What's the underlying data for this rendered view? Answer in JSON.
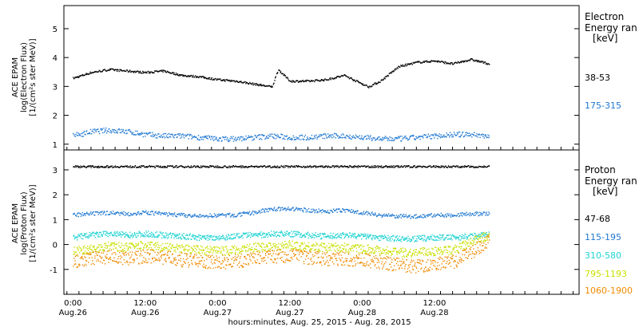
{
  "chart_data": [
    {
      "type": "scatter",
      "panel": "electron",
      "ylabel": [
        "ACE EPAM",
        "log(Electron Flux)",
        "[1/(cm²s ster MeV)]"
      ],
      "ylim": [
        0.8,
        5.8
      ],
      "yticks": [
        "1",
        "2",
        "3",
        "4",
        "5"
      ],
      "side_title": [
        "Electron",
        "Energy ran",
        "[keV]"
      ],
      "series": [
        {
          "name": "38-53",
          "color": "#000000",
          "x": [
            0,
            3,
            6,
            9,
            12,
            15,
            18,
            21,
            24,
            27,
            30,
            33,
            34,
            36,
            39,
            42,
            45,
            47,
            48,
            49,
            50,
            51,
            54,
            57,
            60,
            63,
            66,
            69
          ],
          "y": [
            3.3,
            3.5,
            3.6,
            3.55,
            3.5,
            3.55,
            3.4,
            3.35,
            3.25,
            3.2,
            3.1,
            3.0,
            3.6,
            3.2,
            3.2,
            3.25,
            3.4,
            3.2,
            3.1,
            3.0,
            3.1,
            3.2,
            3.7,
            3.85,
            3.9,
            3.8,
            3.95,
            3.8
          ]
        },
        {
          "name": "175-315",
          "color": "#1f78d1",
          "x": [
            0,
            3,
            6,
            9,
            12,
            15,
            18,
            21,
            24,
            27,
            30,
            33,
            36,
            39,
            42,
            45,
            48,
            51,
            54,
            57,
            60,
            63,
            66,
            69
          ],
          "y": [
            1.3,
            1.45,
            1.5,
            1.45,
            1.35,
            1.3,
            1.3,
            1.25,
            1.2,
            1.2,
            1.25,
            1.3,
            1.25,
            1.25,
            1.3,
            1.3,
            1.25,
            1.2,
            1.2,
            1.25,
            1.3,
            1.35,
            1.35,
            1.3
          ]
        }
      ]
    },
    {
      "type": "scatter",
      "panel": "proton",
      "ylabel": [
        "ACE EPAM",
        "log(Proton Flux)",
        "[1/(cm²s ster MeV)]"
      ],
      "ylim": [
        -2.0,
        3.8
      ],
      "yticks": [
        "-1",
        "0",
        "1",
        "2",
        "3"
      ],
      "side_title": [
        "Proton",
        "Energy ran",
        "[keV]"
      ],
      "series": [
        {
          "name": "47-68",
          "color": "#000000",
          "x": [
            0,
            6,
            12,
            18,
            24,
            30,
            36,
            42,
            48,
            54,
            60,
            66,
            69
          ],
          "y": [
            3.15,
            3.15,
            3.15,
            3.15,
            3.15,
            3.15,
            3.15,
            3.15,
            3.15,
            3.15,
            3.15,
            3.15,
            3.15
          ]
        },
        {
          "name": "115-195",
          "color": "#1f78d1",
          "x": [
            0,
            3,
            6,
            9,
            12,
            15,
            18,
            21,
            24,
            27,
            30,
            33,
            36,
            39,
            42,
            45,
            48,
            51,
            54,
            57,
            60,
            63,
            66,
            69
          ],
          "y": [
            1.2,
            1.25,
            1.3,
            1.25,
            1.3,
            1.25,
            1.2,
            1.15,
            1.2,
            1.2,
            1.3,
            1.45,
            1.45,
            1.4,
            1.35,
            1.4,
            1.3,
            1.2,
            1.15,
            1.15,
            1.2,
            1.2,
            1.25,
            1.25
          ]
        },
        {
          "name": "310-580",
          "color": "#22d3d3",
          "x": [
            0,
            3,
            6,
            9,
            12,
            15,
            18,
            21,
            24,
            27,
            30,
            33,
            36,
            39,
            42,
            45,
            48,
            51,
            54,
            57,
            60,
            63,
            66,
            69
          ],
          "y": [
            0.3,
            0.4,
            0.45,
            0.4,
            0.45,
            0.4,
            0.35,
            0.3,
            0.3,
            0.35,
            0.4,
            0.45,
            0.45,
            0.4,
            0.35,
            0.4,
            0.35,
            0.3,
            0.25,
            0.25,
            0.3,
            0.3,
            0.35,
            0.45
          ]
        },
        {
          "name": "795-1193",
          "color": "#c9e000",
          "x": [
            0,
            3,
            6,
            9,
            12,
            15,
            18,
            21,
            24,
            27,
            30,
            33,
            36,
            39,
            42,
            45,
            48,
            51,
            54,
            57,
            60,
            63,
            66,
            69
          ],
          "y": [
            -0.25,
            -0.15,
            -0.05,
            -0.1,
            0.0,
            -0.1,
            -0.15,
            -0.2,
            -0.25,
            -0.2,
            -0.1,
            -0.05,
            0.0,
            -0.05,
            -0.1,
            -0.1,
            -0.15,
            -0.2,
            -0.3,
            -0.3,
            -0.25,
            -0.2,
            0.1,
            0.4
          ]
        },
        {
          "name": "1060-1900",
          "color": "#f08a00",
          "x": [
            0,
            3,
            6,
            9,
            12,
            15,
            18,
            21,
            24,
            27,
            30,
            33,
            36,
            39,
            42,
            45,
            48,
            51,
            54,
            57,
            60,
            63,
            66,
            69
          ],
          "y": [
            -0.7,
            -0.55,
            -0.45,
            -0.55,
            -0.45,
            -0.5,
            -0.6,
            -0.65,
            -0.7,
            -0.65,
            -0.55,
            -0.45,
            -0.45,
            -0.5,
            -0.55,
            -0.55,
            -0.6,
            -0.7,
            -0.8,
            -0.85,
            -0.75,
            -0.7,
            -0.3,
            0.2
          ]
        }
      ]
    }
  ],
  "xaxis": {
    "range_hours": [
      -1.5,
      84
    ],
    "ticks": [
      {
        "h": 0,
        "time": "0:00",
        "date": "Aug.26"
      },
      {
        "h": 12,
        "time": "12:00",
        "date": "Aug.26"
      },
      {
        "h": 24,
        "time": "0:00",
        "date": "Aug.27"
      },
      {
        "h": 36,
        "time": "12:00",
        "date": "Aug.27"
      },
      {
        "h": 48,
        "time": "0:00",
        "date": "Aug.28"
      },
      {
        "h": 60,
        "time": "12:00",
        "date": "Aug.28"
      }
    ],
    "title": "hours:minutes, Aug. 25, 2015 - Aug. 28, 2015"
  }
}
